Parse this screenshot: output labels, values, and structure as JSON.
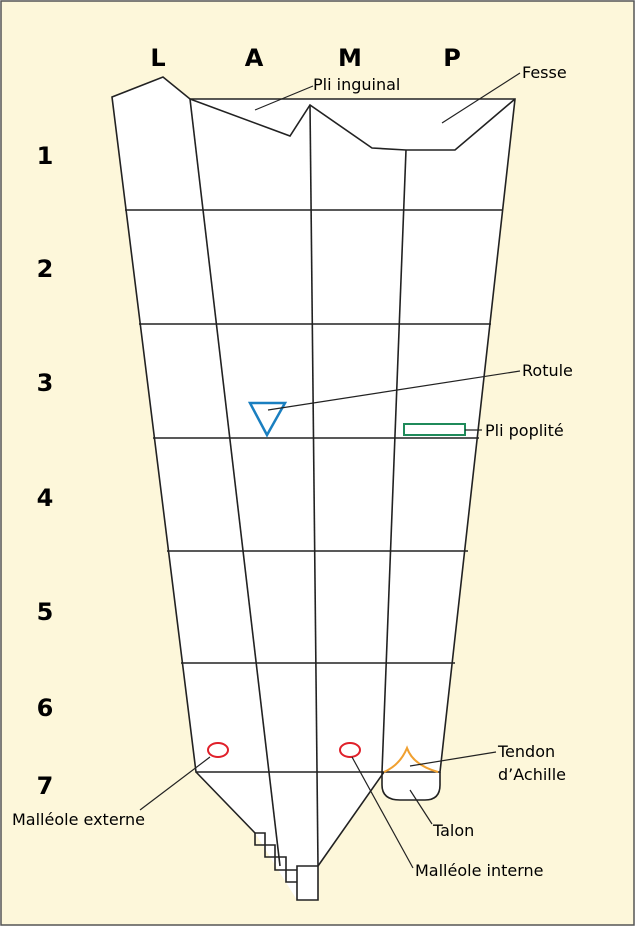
{
  "column_labels": [
    "L",
    "A",
    "M",
    "P"
  ],
  "row_labels": [
    "1",
    "2",
    "3",
    "4",
    "5",
    "6",
    "7"
  ],
  "annotations": {
    "pli_inguinal": "Pli inguinal",
    "fesse": "Fesse",
    "rotule": "Rotule",
    "pli_poplite": "Pli poplité",
    "tendon_achille": [
      "Tendon",
      "d’Achille"
    ],
    "talon": "Talon",
    "malleole_externe": "Malléole externe",
    "malleole_interne": "Malléole interne"
  }
}
